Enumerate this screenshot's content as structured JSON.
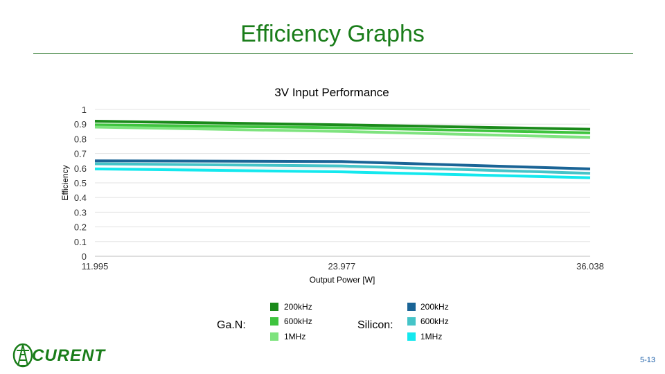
{
  "slide": {
    "title": "Efficiency Graphs",
    "page_number": "5-13"
  },
  "logo": {
    "text": "CURENT"
  },
  "chart_data": {
    "type": "line",
    "title": "3V Input Performance",
    "xlabel": "Output Power [W]",
    "ylabel": "Efficiency",
    "x": [
      11.995,
      23.977,
      36.038
    ],
    "x_tick_labels": [
      "11.995",
      "23.977",
      "36.038"
    ],
    "ylim": [
      0,
      1
    ],
    "y_tick_labels": [
      "0",
      "0.1",
      "0.2",
      "0.3",
      "0.4",
      "0.5",
      "0.6",
      "0.7",
      "0.8",
      "0.9",
      "1"
    ],
    "grid": true,
    "series": [
      {
        "group": "Ga.N:",
        "name": "200kHz",
        "color": "#1a8a1a",
        "values": [
          0.92,
          0.895,
          0.865
        ]
      },
      {
        "group": "Ga.N:",
        "name": "600kHz",
        "color": "#3ec43e",
        "values": [
          0.895,
          0.875,
          0.84
        ]
      },
      {
        "group": "Ga.N:",
        "name": "1MHz",
        "color": "#7ee37e",
        "values": [
          0.88,
          0.85,
          0.81
        ]
      },
      {
        "group": "Silicon:",
        "name": "200kHz",
        "color": "#1a6496",
        "values": [
          0.65,
          0.645,
          0.595
        ]
      },
      {
        "group": "Silicon:",
        "name": "600kHz",
        "color": "#45c4c8",
        "values": [
          0.63,
          0.615,
          0.565
        ]
      },
      {
        "group": "Silicon:",
        "name": "1MHz",
        "color": "#14e8ee",
        "values": [
          0.595,
          0.575,
          0.535
        ]
      }
    ]
  },
  "legend": {
    "groups": [
      {
        "label": "Ga.N:",
        "items": [
          "200kHz",
          "600kHz",
          "1MHz"
        ]
      },
      {
        "label": "Silicon:",
        "items": [
          "200kHz",
          "600kHz",
          "1MHz"
        ]
      }
    ]
  }
}
